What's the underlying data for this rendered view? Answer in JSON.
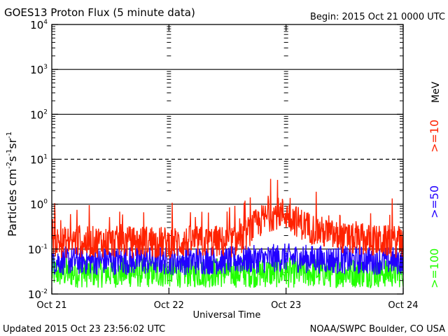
{
  "chart_data": {
    "type": "line",
    "title": "GOES13 Proton Flux (5 minute data)",
    "begin": "Begin: 2015 Oct 21 0000 UTC",
    "xlabel": "Universal Time",
    "ylabel": "Particles cm",
    "ylabel_exp1": "-2",
    "ylabel_s": "s",
    "ylabel_exp2": "-1",
    "ylabel_sr": "sr",
    "ylabel_exp3": "-1",
    "yscale": "log",
    "ylim": [
      0.01,
      10000
    ],
    "xlim": [
      0,
      3
    ],
    "x_ticks": [
      {
        "label": "Oct 21",
        "value": 0
      },
      {
        "label": "Oct 22",
        "value": 1
      },
      {
        "label": "Oct 23",
        "value": 2
      },
      {
        "label": "Oct 24",
        "value": 3
      }
    ],
    "y_ticks": [
      {
        "base": "10",
        "exp": "-2",
        "value": 0.01
      },
      {
        "base": "10",
        "exp": "-1",
        "value": 0.1
      },
      {
        "base": "10",
        "exp": "0",
        "value": 1
      },
      {
        "base": "10",
        "exp": "1",
        "value": 10
      },
      {
        "base": "10",
        "exp": "2",
        "value": 100
      },
      {
        "base": "10",
        "exp": "3",
        "value": 1000
      },
      {
        "base": "10",
        "exp": "4",
        "value": 10000
      }
    ],
    "gridlines": [
      {
        "value": 1000,
        "style": "solid"
      },
      {
        "value": 100,
        "style": "solid"
      },
      {
        "value": 10,
        "style": "dashed"
      },
      {
        "value": 1,
        "style": "solid"
      },
      {
        "value": 0.1,
        "style": "solid"
      }
    ],
    "energy_unit": "MeV",
    "series": [
      {
        "name": ">=10",
        "label": ">=10",
        "color": "#ff2200",
        "x": [
          0,
          0.1,
          0.2,
          0.3,
          0.4,
          0.5,
          0.6,
          0.7,
          0.8,
          0.9,
          1.0,
          1.1,
          1.2,
          1.3,
          1.4,
          1.5,
          1.6,
          1.65,
          1.7,
          1.75,
          1.8,
          1.85,
          1.9,
          1.95,
          2.0,
          2.05,
          2.1,
          2.2,
          2.3,
          2.4,
          2.5,
          2.6,
          2.7,
          2.8,
          2.9,
          3.0
        ],
        "values": [
          0.15,
          0.14,
          0.15,
          0.14,
          0.15,
          0.14,
          0.15,
          0.14,
          0.15,
          0.14,
          0.14,
          0.14,
          0.15,
          0.14,
          0.15,
          0.14,
          0.16,
          0.2,
          0.28,
          0.36,
          0.45,
          0.52,
          0.6,
          0.65,
          0.6,
          0.5,
          0.4,
          0.3,
          0.24,
          0.2,
          0.17,
          0.16,
          0.16,
          0.15,
          0.15,
          0.14
        ]
      },
      {
        "name": ">=50",
        "label": ">=50",
        "color": "#2200ff",
        "x": [
          0,
          0.5,
          1.0,
          1.5,
          1.8,
          2.0,
          2.2,
          2.5,
          3.0
        ],
        "values": [
          0.055,
          0.055,
          0.055,
          0.056,
          0.06,
          0.065,
          0.06,
          0.057,
          0.055
        ]
      },
      {
        "name": ">=100",
        "label": ">=100",
        "color": "#22ff00",
        "x": [
          0,
          0.5,
          1.0,
          1.5,
          2.0,
          2.5,
          3.0
        ],
        "values": [
          0.03,
          0.03,
          0.03,
          0.03,
          0.03,
          0.03,
          0.03
        ]
      }
    ]
  },
  "footer": {
    "updated": "Updated 2015 Oct 23 23:56:02 UTC",
    "credit": "NOAA/SWPC Boulder, CO USA"
  }
}
